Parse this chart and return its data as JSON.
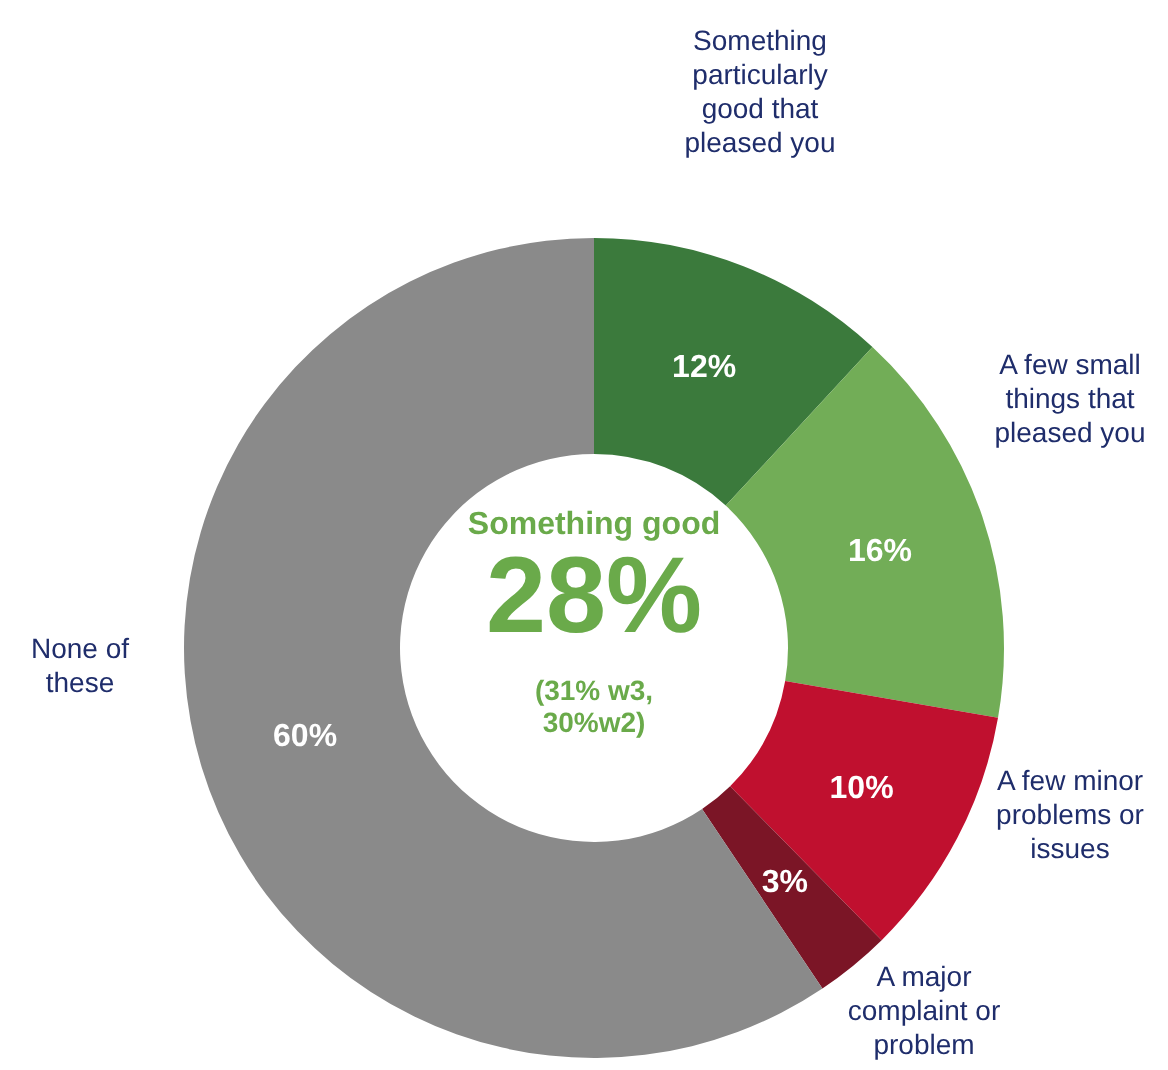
{
  "chart_data": {
    "type": "donut",
    "categories": [
      "Something particularly good that pleased you",
      "A few small things that pleased you",
      "A few minor problems or issues",
      "A major complaint or problem",
      "None of these"
    ],
    "values": [
      12,
      16,
      10,
      3,
      60
    ],
    "value_labels": [
      "12%",
      "16%",
      "10%",
      "3%",
      "60%"
    ],
    "colors": [
      "#3b7a3c",
      "#72ad57",
      "#c0102f",
      "#7b1526",
      "#8a8a8a"
    ],
    "annotations": [
      "Something good",
      "28%",
      "(31% w3, 30%w2)"
    ]
  }
}
